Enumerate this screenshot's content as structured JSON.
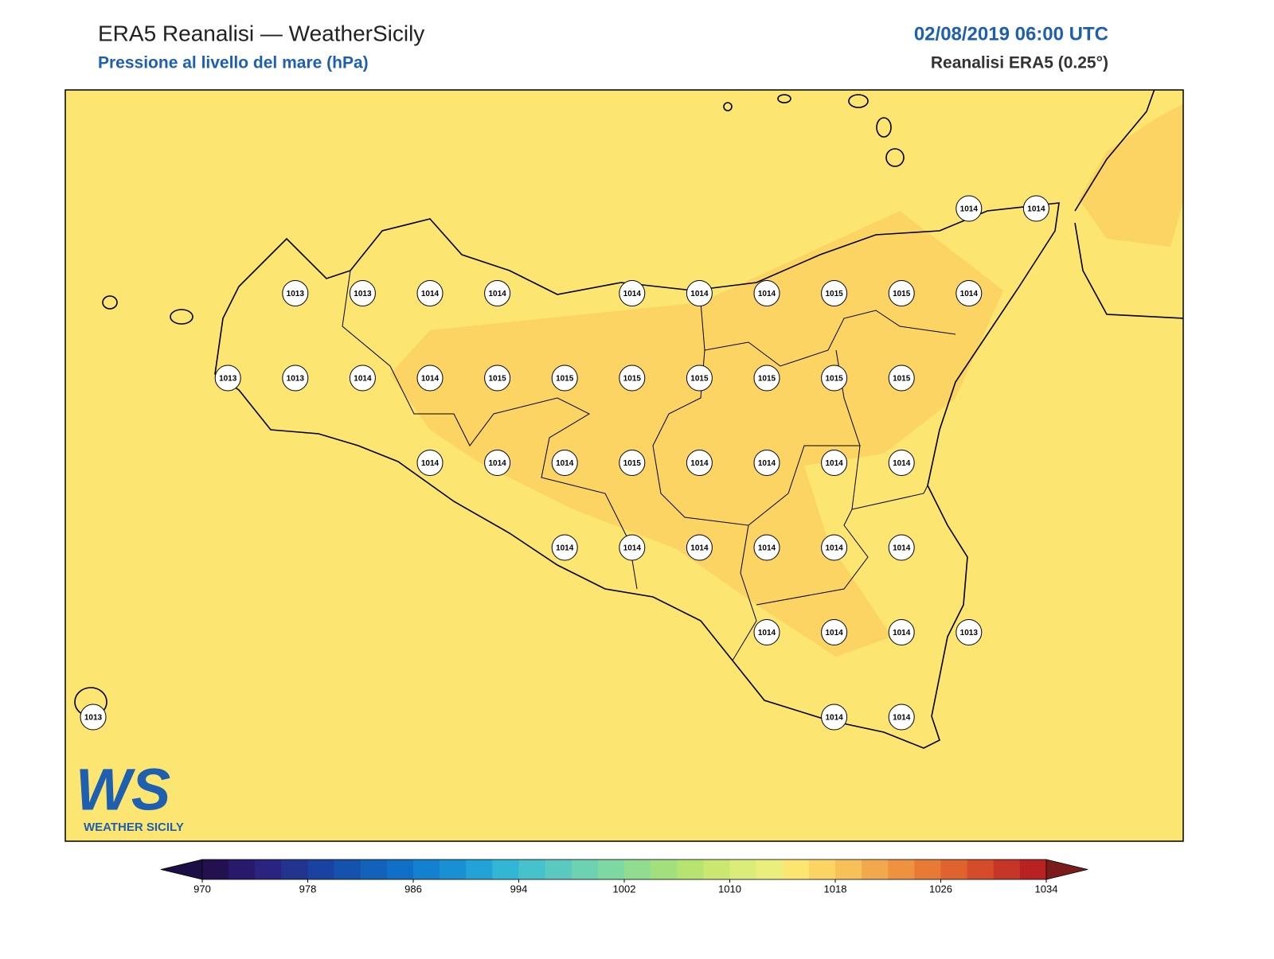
{
  "header": {
    "title": "ERA5 Reanalisi — WeatherSicily",
    "subtitle": "Pressione al livello del mare (hPa)",
    "datetime": "02/08/2019 06:00 UTC",
    "source": "Reanalisi ERA5 (0.25°)"
  },
  "stations": [
    [
      null,
      null,
      null,
      null,
      null,
      null,
      null,
      null,
      null,
      null,
      null,
      null,
      null,
      1014,
      1014
    ],
    [
      null,
      null,
      null,
      1013,
      1013,
      1014,
      1014,
      null,
      1014,
      1014,
      1014,
      1015,
      1015,
      1014,
      null
    ],
    [
      null,
      null,
      1013,
      1013,
      1014,
      1014,
      1015,
      1015,
      1015,
      1015,
      1015,
      1015,
      1015,
      null,
      null
    ],
    [
      null,
      null,
      null,
      null,
      null,
      1014,
      1014,
      1014,
      1015,
      1014,
      1014,
      1014,
      1014,
      null,
      null
    ],
    [
      null,
      null,
      null,
      null,
      null,
      null,
      null,
      1014,
      1014,
      1014,
      1014,
      1014,
      1014,
      null,
      null
    ],
    [
      null,
      null,
      null,
      null,
      null,
      null,
      null,
      null,
      null,
      null,
      1014,
      1014,
      1014,
      1013,
      null
    ],
    [
      1013,
      null,
      null,
      null,
      null,
      null,
      null,
      null,
      null,
      null,
      null,
      1014,
      1014,
      null,
      null
    ]
  ],
  "logo": {
    "mark": "WS",
    "text": "WEATHER SICILY"
  },
  "colorbar": {
    "lim": [
      970,
      1034
    ],
    "ticks": [
      970,
      978,
      986,
      994,
      1002,
      1010,
      1018,
      1026,
      1034
    ],
    "under": "#1c0f45",
    "over": "#7a1c1c",
    "colors": [
      "#231050",
      "#28196c",
      "#2a2480",
      "#23348f",
      "#1a42a0",
      "#1452ad",
      "#1261bb",
      "#1070c8",
      "#1480d0",
      "#1a90d4",
      "#22a2d6",
      "#32b6d6",
      "#46c2cc",
      "#5acac0",
      "#6cd2b2",
      "#7ed8a2",
      "#90dc90",
      "#a2e07e",
      "#b6e470",
      "#cae870",
      "#dcec78",
      "#eaee7c",
      "#fce570",
      "#fbd463",
      "#f7c058",
      "#f2a84c",
      "#ee9240",
      "#e87a36",
      "#e0622e",
      "#d44c2a",
      "#c63626",
      "#b82222"
    ]
  }
}
